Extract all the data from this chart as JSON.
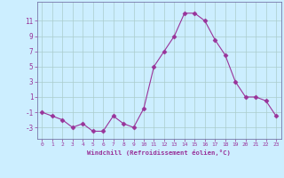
{
  "x": [
    0,
    1,
    2,
    3,
    4,
    5,
    6,
    7,
    8,
    9,
    10,
    11,
    12,
    13,
    14,
    15,
    16,
    17,
    18,
    19,
    20,
    21,
    22,
    23
  ],
  "y": [
    -1,
    -1.5,
    -2,
    -3,
    -2.5,
    -3.5,
    -3.5,
    -1.5,
    -2.5,
    -3,
    -0.5,
    5,
    7,
    9,
    12,
    12,
    11,
    8.5,
    6.5,
    3,
    1,
    1,
    0.5,
    -1.5
  ],
  "line_color": "#993399",
  "marker": "D",
  "marker_size": 2.5,
  "background_color": "#cceeff",
  "grid_color": "#aacccc",
  "xlabel": "Windchill (Refroidissement éolien,°C)",
  "xlabel_color": "#993399",
  "ytick_labels": [
    "-3",
    "-1",
    "1",
    "3",
    "5",
    "7",
    "9",
    "11"
  ],
  "ytick_values": [
    -3,
    -1,
    1,
    3,
    5,
    7,
    9,
    11
  ],
  "ylim": [
    -4.5,
    13.5
  ],
  "xlim": [
    -0.5,
    23.5
  ],
  "tick_color": "#993399",
  "spine_color": "#7777aa",
  "font_color": "#993399"
}
